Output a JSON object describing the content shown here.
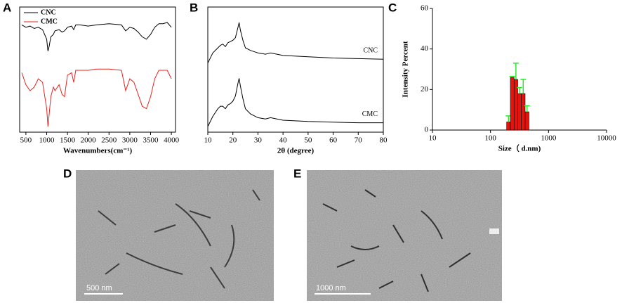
{
  "chart_data": [
    {
      "type": "line",
      "panel": "A",
      "xlabel": "Wavenumbers(cm⁻¹)",
      "x": [
        400,
        500,
        600,
        700,
        800,
        900,
        1000,
        1030,
        1060,
        1100,
        1160,
        1200,
        1300,
        1370,
        1430,
        1500,
        1600,
        1650,
        1700,
        1800,
        2000,
        2200,
        2500,
        2800,
        2900,
        3000,
        3100,
        3200,
        3300,
        3400,
        3500,
        3600,
        3700,
        3800,
        3900,
        4000
      ],
      "series": [
        {
          "name": "CNC",
          "color": "#000000",
          "values": [
            90,
            88,
            89,
            87,
            88,
            86,
            78,
            68,
            72,
            80,
            82,
            85,
            86,
            84,
            85,
            88,
            89,
            86,
            90,
            90,
            89,
            90,
            91,
            90,
            85,
            88,
            87,
            84,
            80,
            78,
            82,
            88,
            91,
            91,
            92,
            88
          ]
        },
        {
          "name": "CMC",
          "color": "#e8231f",
          "values": [
            50,
            40,
            35,
            38,
            45,
            42,
            20,
            5,
            15,
            30,
            38,
            35,
            40,
            32,
            30,
            48,
            50,
            42,
            52,
            52,
            52,
            53,
            53,
            52,
            35,
            45,
            42,
            32,
            22,
            20,
            30,
            45,
            52,
            52,
            52,
            45
          ]
        }
      ],
      "xlim": [
        350,
        4100
      ],
      "xticks": [
        500,
        1000,
        1500,
        2000,
        2500,
        3000,
        3500,
        4000
      ],
      "legend": "upper left"
    },
    {
      "type": "line",
      "panel": "B",
      "xlabel": "2θ (degree)",
      "x": [
        10,
        12,
        14,
        15,
        16,
        17,
        18,
        19,
        20,
        21,
        22,
        22.5,
        23,
        24,
        25,
        27,
        30,
        33,
        35,
        40,
        50,
        60,
        70,
        80
      ],
      "series": [
        {
          "name": "CNC",
          "color": "#000000",
          "values": [
            60,
            68,
            72,
            74,
            75,
            73,
            76,
            77,
            78,
            80,
            88,
            92,
            86,
            78,
            72,
            70,
            68,
            67,
            68,
            66,
            65,
            64,
            63.5,
            63
          ]
        },
        {
          "name": "CMC",
          "color": "#000000",
          "values": [
            10,
            18,
            24,
            26,
            26,
            24,
            27,
            28,
            30,
            34,
            44,
            48,
            42,
            32,
            24,
            20,
            17,
            16,
            17,
            15,
            14,
            13.5,
            13,
            13
          ]
        }
      ],
      "xlim": [
        10,
        80
      ],
      "xticks": [
        10,
        20,
        30,
        40,
        50,
        60,
        70,
        80
      ],
      "legend": "inline"
    },
    {
      "type": "histogram",
      "panel": "C",
      "xlabel": "Size（ d.nm)",
      "ylabel": "Intensity Percent",
      "bins": [
        190,
        220,
        255,
        295,
        340,
        395,
        460
      ],
      "values": [
        4,
        26,
        25,
        18,
        18,
        9
      ],
      "errors": [
        3,
        0.5,
        8,
        3,
        7,
        3
      ],
      "color": "#e8120c",
      "error_color": "#2ee82e",
      "xlim": [
        10,
        10000
      ],
      "xticks": [
        10,
        100,
        1000,
        10000
      ],
      "xscale": "log",
      "ylim": [
        0,
        60
      ],
      "yticks": [
        0,
        20,
        40,
        60
      ]
    },
    {
      "type": "image",
      "panel": "D",
      "scale_bar": "500 nm"
    },
    {
      "type": "image",
      "panel": "E",
      "scale_bar": "1000 nm"
    }
  ]
}
